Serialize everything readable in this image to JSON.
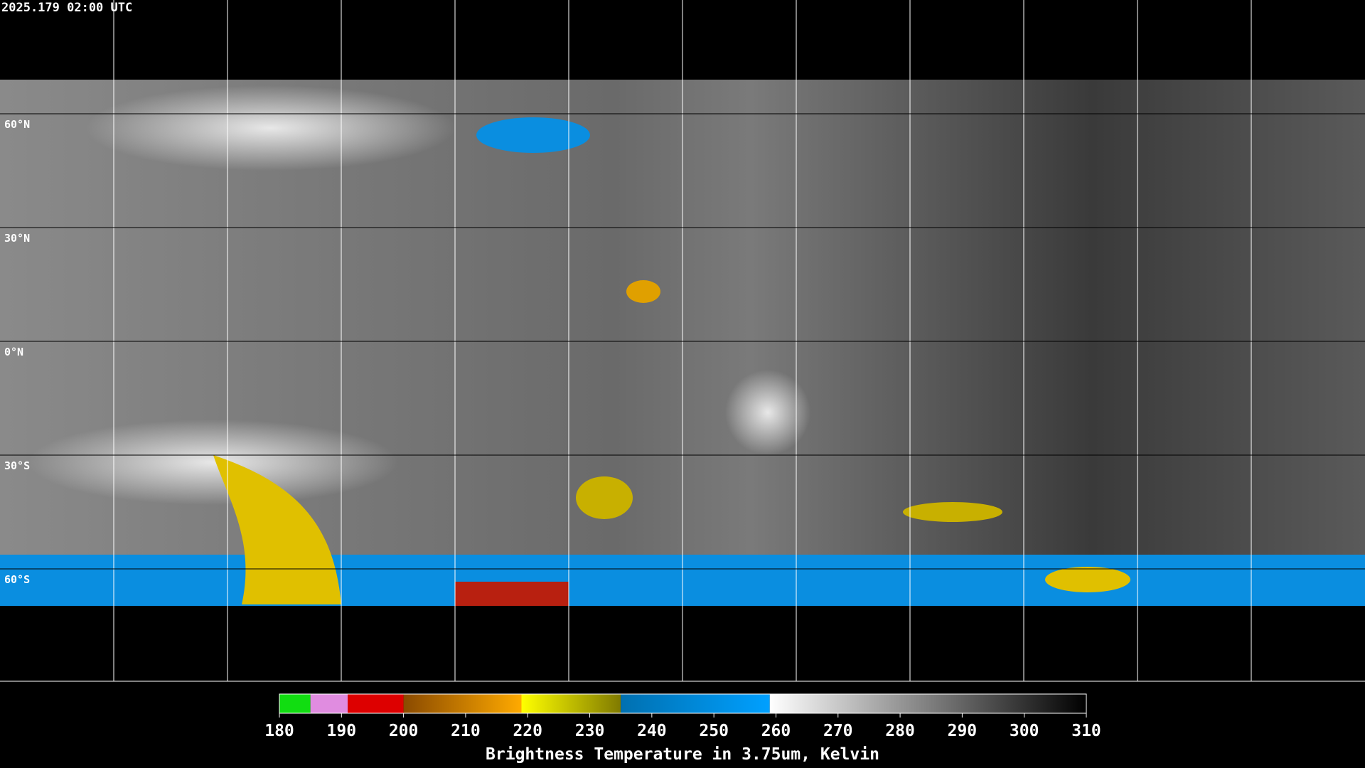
{
  "timestamp": "2025.179 02:00 UTC",
  "map": {
    "lat_labels": [
      "60°N",
      "30°N",
      "0°N",
      "30°S",
      "60°S"
    ]
  },
  "colorbar": {
    "label": "Brightness Temperature in 3.75um, Kelvin",
    "range": [
      180,
      310
    ],
    "ticks": [
      180,
      190,
      200,
      210,
      220,
      230,
      240,
      250,
      260,
      270,
      280,
      290,
      300,
      310
    ],
    "segments": [
      {
        "from": 180,
        "to": 185,
        "colors": [
          "#11dd11",
          "#11dd11"
        ]
      },
      {
        "from": 185,
        "to": 191,
        "colors": [
          "#e08ce0",
          "#e08ce0"
        ]
      },
      {
        "from": 191,
        "to": 200,
        "colors": [
          "#dd0000",
          "#dd0000"
        ]
      },
      {
        "from": 200,
        "to": 219,
        "colors": [
          "#8a4a00",
          "#ffaa00"
        ]
      },
      {
        "from": 219,
        "to": 235,
        "colors": [
          "#ffff00",
          "#807a00"
        ]
      },
      {
        "from": 235,
        "to": 259,
        "colors": [
          "#0070b0",
          "#00a0ff"
        ]
      },
      {
        "from": 259,
        "to": 310,
        "colors": [
          "#ffffff",
          "#000000"
        ]
      }
    ]
  }
}
